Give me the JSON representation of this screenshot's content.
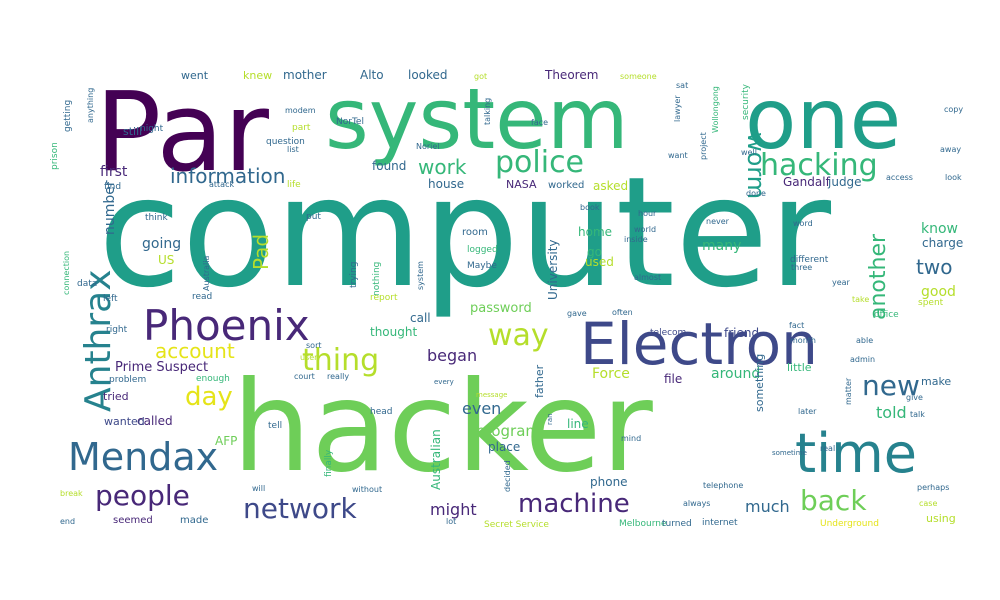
{
  "wordcloud": {
    "palette": {
      "dark_purple": "#440154",
      "purple": "#482878",
      "indigo": "#3e4989",
      "blue": "#31688e",
      "teal_blue": "#26828e",
      "teal": "#1f9e89",
      "green": "#35b779",
      "light_green": "#6ece58",
      "lime": "#b5de2b",
      "yellow": "#e5e419"
    },
    "words": [
      {
        "text": "computer",
        "color": "#1f9e89"
      },
      {
        "text": "hacker",
        "color": "#6ece58"
      },
      {
        "text": "Par",
        "color": "#440154"
      },
      {
        "text": "system",
        "color": "#35b779"
      },
      {
        "text": "one",
        "color": "#1f9e89"
      },
      {
        "text": "Electron",
        "color": "#3e4989"
      },
      {
        "text": "time",
        "color": "#26828e"
      },
      {
        "text": "Phoenix",
        "color": "#482878"
      },
      {
        "text": "Anthrax",
        "color": "#26828e"
      },
      {
        "text": "Mendax",
        "color": "#31688e"
      },
      {
        "text": "police",
        "color": "#35b779"
      },
      {
        "text": "hacking",
        "color": "#35b779"
      },
      {
        "text": "worm",
        "color": "#1f9e89"
      },
      {
        "text": "way",
        "color": "#b5de2b"
      },
      {
        "text": "thing",
        "color": "#b5de2b"
      },
      {
        "text": "people",
        "color": "#482878"
      },
      {
        "text": "network",
        "color": "#3e4989"
      },
      {
        "text": "machine",
        "color": "#482878"
      },
      {
        "text": "back",
        "color": "#6ece58"
      },
      {
        "text": "new",
        "color": "#31688e"
      },
      {
        "text": "day",
        "color": "#e5e419"
      },
      {
        "text": "information",
        "color": "#31688e"
      },
      {
        "text": "another",
        "color": "#35b779"
      },
      {
        "text": "work",
        "color": "#35b779"
      },
      {
        "text": "account",
        "color": "#e5e419"
      },
      {
        "text": "Pad",
        "color": "#b5de2b"
      },
      {
        "text": "two",
        "color": "#31688e"
      },
      {
        "text": "number",
        "color": "#31688e"
      },
      {
        "text": "going",
        "color": "#31688e"
      },
      {
        "text": "many",
        "color": "#35b779"
      },
      {
        "text": "might",
        "color": "#482878"
      },
      {
        "text": "much",
        "color": "#31688e"
      },
      {
        "text": "even",
        "color": "#31688e"
      },
      {
        "text": "told",
        "color": "#35b779"
      },
      {
        "text": "began",
        "color": "#482878"
      },
      {
        "text": "program",
        "color": "#6ece58"
      },
      {
        "text": "Force",
        "color": "#b5de2b"
      },
      {
        "text": "around",
        "color": "#35b779"
      },
      {
        "text": "first",
        "color": "#482878"
      },
      {
        "text": "know",
        "color": "#35b779"
      },
      {
        "text": "good",
        "color": "#b5de2b"
      },
      {
        "text": "charge",
        "color": "#31688e"
      },
      {
        "text": "make",
        "color": "#31688e"
      },
      {
        "text": "using",
        "color": "#b5de2b"
      },
      {
        "text": "Prime Suspect",
        "color": "#482878"
      },
      {
        "text": "called",
        "color": "#482878"
      },
      {
        "text": "wanted",
        "color": "#3e4989"
      },
      {
        "text": "tried",
        "color": "#482878"
      },
      {
        "text": "seemed",
        "color": "#482878"
      },
      {
        "text": "made",
        "color": "#31688e"
      },
      {
        "text": "AFP",
        "color": "#6ece58"
      },
      {
        "text": "US",
        "color": "#b5de2b"
      },
      {
        "text": "password",
        "color": "#6ece58"
      },
      {
        "text": "thought",
        "color": "#35b779"
      },
      {
        "text": "call",
        "color": "#31688e"
      },
      {
        "text": "friend",
        "color": "#3e4989"
      },
      {
        "text": "used",
        "color": "#b5de2b"
      },
      {
        "text": "go",
        "color": "#35b779"
      },
      {
        "text": "home",
        "color": "#35b779"
      },
      {
        "text": "place",
        "color": "#31688e"
      },
      {
        "text": "line",
        "color": "#35b779"
      },
      {
        "text": "file",
        "color": "#482878"
      },
      {
        "text": "phone",
        "color": "#31688e"
      },
      {
        "text": "found",
        "color": "#31688e"
      },
      {
        "text": "house",
        "color": "#31688e"
      },
      {
        "text": "asked",
        "color": "#b5de2b"
      },
      {
        "text": "Gandalf",
        "color": "#482878"
      },
      {
        "text": "judge",
        "color": "#31688e"
      },
      {
        "text": "Theorem",
        "color": "#482878"
      },
      {
        "text": "Alto",
        "color": "#31688e"
      },
      {
        "text": "looked",
        "color": "#31688e"
      },
      {
        "text": "mother",
        "color": "#31688e"
      },
      {
        "text": "knew",
        "color": "#b5de2b"
      },
      {
        "text": "went",
        "color": "#31688e"
      },
      {
        "text": "still",
        "color": "#31688e"
      },
      {
        "text": "University",
        "color": "#31688e"
      },
      {
        "text": "Australian",
        "color": "#35b779"
      },
      {
        "text": "NASA",
        "color": "#482878"
      },
      {
        "text": "worked",
        "color": "#31688e"
      },
      {
        "text": "father",
        "color": "#31688e"
      },
      {
        "text": "something",
        "color": "#31688e"
      },
      {
        "text": "little",
        "color": "#35b779"
      },
      {
        "text": "room",
        "color": "#31688e"
      },
      {
        "text": "different",
        "color": "#31688e"
      },
      {
        "text": "office",
        "color": "#35b779"
      },
      {
        "text": "spent",
        "color": "#b5de2b"
      },
      {
        "text": "Secret Service",
        "color": "#b5de2b"
      },
      {
        "text": "Melbourne",
        "color": "#35b779"
      },
      {
        "text": "turned",
        "color": "#31688e"
      },
      {
        "text": "internet",
        "color": "#31688e"
      },
      {
        "text": "Underground",
        "color": "#e5e419"
      },
      {
        "text": "telecom",
        "color": "#3e4989"
      },
      {
        "text": "security",
        "color": "#35b779"
      },
      {
        "text": "Maybe",
        "color": "#31688e"
      },
      {
        "text": "logged",
        "color": "#35b779"
      },
      {
        "text": "finally",
        "color": "#35b779"
      },
      {
        "text": "trying",
        "color": "#31688e"
      },
      {
        "text": "nothing",
        "color": "#35b779"
      },
      {
        "text": "connection",
        "color": "#35b779"
      },
      {
        "text": "getting",
        "color": "#31688e"
      },
      {
        "text": "prison",
        "color": "#35b779"
      },
      {
        "text": "question",
        "color": "#31688e"
      },
      {
        "text": "modem",
        "color": "#31688e"
      },
      {
        "text": "part",
        "color": "#b5de2b"
      },
      {
        "text": "list",
        "color": "#31688e"
      },
      {
        "text": "life",
        "color": "#b5de2b"
      },
      {
        "text": "put",
        "color": "#31688e"
      },
      {
        "text": "data",
        "color": "#31688e"
      },
      {
        "text": "think",
        "color": "#31688e"
      },
      {
        "text": "find",
        "color": "#31688e"
      },
      {
        "text": "night",
        "color": "#31688e"
      },
      {
        "text": "problem",
        "color": "#31688e"
      },
      {
        "text": "enough",
        "color": "#35b779"
      },
      {
        "text": "court",
        "color": "#31688e"
      },
      {
        "text": "really",
        "color": "#31688e"
      },
      {
        "text": "read",
        "color": "#31688e"
      },
      {
        "text": "left",
        "color": "#31688e"
      },
      {
        "text": "right",
        "color": "#31688e"
      },
      {
        "text": "report",
        "color": "#b5de2b"
      },
      {
        "text": "user",
        "color": "#b5de2b"
      },
      {
        "text": "sort",
        "color": "#31688e"
      },
      {
        "text": "head",
        "color": "#31688e"
      },
      {
        "text": "tell",
        "color": "#31688e"
      },
      {
        "text": "will",
        "color": "#31688e"
      },
      {
        "text": "without",
        "color": "#31688e"
      },
      {
        "text": "break",
        "color": "#b5de2b"
      },
      {
        "text": "end",
        "color": "#31688e"
      },
      {
        "text": "lot",
        "color": "#31688e"
      },
      {
        "text": "decided",
        "color": "#31688e"
      },
      {
        "text": "mind",
        "color": "#31688e"
      },
      {
        "text": "always",
        "color": "#31688e"
      },
      {
        "text": "telephone",
        "color": "#31688e"
      },
      {
        "text": "later",
        "color": "#31688e"
      },
      {
        "text": "give",
        "color": "#31688e"
      },
      {
        "text": "talk",
        "color": "#31688e"
      },
      {
        "text": "perhaps",
        "color": "#31688e"
      },
      {
        "text": "case",
        "color": "#b5de2b"
      },
      {
        "text": "real",
        "color": "#31688e"
      },
      {
        "text": "fact",
        "color": "#31688e"
      },
      {
        "text": "month",
        "color": "#31688e"
      },
      {
        "text": "admin",
        "color": "#31688e"
      },
      {
        "text": "able",
        "color": "#31688e"
      },
      {
        "text": "take",
        "color": "#b5de2b"
      },
      {
        "text": "year",
        "color": "#31688e"
      },
      {
        "text": "almost",
        "color": "#31688e"
      },
      {
        "text": "often",
        "color": "#31688e"
      },
      {
        "text": "gave",
        "color": "#31688e"
      },
      {
        "text": "word",
        "color": "#31688e"
      },
      {
        "text": "three",
        "color": "#31688e"
      },
      {
        "text": "never",
        "color": "#31688e"
      },
      {
        "text": "hour",
        "color": "#31688e"
      },
      {
        "text": "world",
        "color": "#31688e"
      },
      {
        "text": "inside",
        "color": "#31688e"
      },
      {
        "text": "book",
        "color": "#31688e"
      },
      {
        "text": "done",
        "color": "#31688e"
      },
      {
        "text": "well",
        "color": "#31688e"
      },
      {
        "text": "look",
        "color": "#31688e"
      },
      {
        "text": "access",
        "color": "#31688e"
      },
      {
        "text": "away",
        "color": "#31688e"
      },
      {
        "text": "copy",
        "color": "#31688e"
      },
      {
        "text": "face",
        "color": "#31688e"
      },
      {
        "text": "sat",
        "color": "#31688e"
      },
      {
        "text": "lawyer",
        "color": "#31688e"
      },
      {
        "text": "want",
        "color": "#31688e"
      },
      {
        "text": "got",
        "color": "#b5de2b"
      },
      {
        "text": "someone",
        "color": "#b5de2b"
      },
      {
        "text": "talking",
        "color": "#31688e"
      },
      {
        "text": "project",
        "color": "#31688e"
      },
      {
        "text": "Wollongong",
        "color": "#35b779"
      },
      {
        "text": "Noriel",
        "color": "#31688e"
      },
      {
        "text": "NorTel",
        "color": "#31688e"
      },
      {
        "text": "attack",
        "color": "#31688e"
      },
      {
        "text": "Australia",
        "color": "#31688e"
      },
      {
        "text": "anything",
        "color": "#31688e"
      },
      {
        "text": "system",
        "color": "#31688e"
      },
      {
        "text": "matter",
        "color": "#31688e"
      },
      {
        "text": "message",
        "color": "#b5de2b"
      },
      {
        "text": "every",
        "color": "#31688e"
      },
      {
        "text": "ran",
        "color": "#31688e"
      },
      {
        "text": "sometime",
        "color": "#31688e"
      }
    ]
  }
}
